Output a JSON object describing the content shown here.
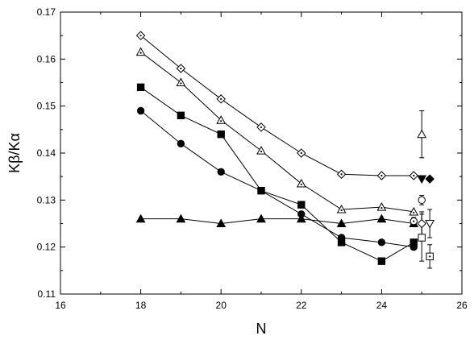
{
  "chart_data": {
    "type": "scatter",
    "title": "",
    "xlabel": "N",
    "ylabel": "Kβ/Kα",
    "xlim": [
      16,
      26
    ],
    "ylim": [
      0.11,
      0.17
    ],
    "xticks": [
      "16",
      "18",
      "20",
      "22",
      "24",
      "26"
    ],
    "yticks": [
      "0.11",
      "0.12",
      "0.13",
      "0.14",
      "0.15",
      "0.16",
      "0.17"
    ],
    "grid": false,
    "legend": "none",
    "series": [
      {
        "marker": "diamond-dotted",
        "connected": true,
        "x": [
          18,
          19,
          20,
          21,
          22,
          23,
          24,
          24.8
        ],
        "y": [
          0.165,
          0.158,
          0.1515,
          0.1455,
          0.14,
          0.1355,
          0.1352,
          0.1352
        ]
      },
      {
        "marker": "triangle-dotted",
        "connected": true,
        "x": [
          18,
          19,
          20,
          21,
          22,
          23,
          24,
          24.8
        ],
        "y": [
          0.1615,
          0.155,
          0.147,
          0.1405,
          0.1335,
          0.128,
          0.1285,
          0.1275
        ]
      },
      {
        "marker": "square-filled",
        "connected": true,
        "x": [
          18,
          19,
          20,
          21,
          22,
          23,
          24,
          24.8
        ],
        "y": [
          0.154,
          0.148,
          0.144,
          0.132,
          0.129,
          0.121,
          0.117,
          0.121
        ]
      },
      {
        "marker": "circle-filled",
        "connected": true,
        "x": [
          18,
          19,
          20,
          21,
          22,
          23,
          24,
          24.8
        ],
        "y": [
          0.149,
          0.142,
          0.136,
          0.132,
          0.127,
          0.122,
          0.121,
          0.12
        ]
      },
      {
        "marker": "triangle-filled",
        "connected": true,
        "x": [
          18,
          19,
          20,
          21,
          22,
          23,
          24,
          24.8
        ],
        "y": [
          0.126,
          0.126,
          0.125,
          0.126,
          0.126,
          0.125,
          0.126,
          0.125
        ]
      }
    ],
    "reference_points": [
      {
        "marker": "triangle-open",
        "x": 25.0,
        "y": 0.144,
        "err": 0.005
      },
      {
        "marker": "triangle-down-filled",
        "x": 25.0,
        "y": 0.1345,
        "err": 0
      },
      {
        "marker": "diamond-filled",
        "x": 25.2,
        "y": 0.1345,
        "err": 0
      },
      {
        "marker": "circle-open",
        "x": 25.0,
        "y": 0.13,
        "err": 0.001
      },
      {
        "marker": "circle-dotted",
        "x": 24.8,
        "y": 0.1255,
        "err": 0.0008
      },
      {
        "marker": "diamond-open",
        "x": 25.0,
        "y": 0.125,
        "err": 0.0025
      },
      {
        "marker": "triangle-down-open",
        "x": 25.2,
        "y": 0.125,
        "err": 0.003
      },
      {
        "marker": "square-open",
        "x": 25.0,
        "y": 0.122,
        "err": 0.005
      },
      {
        "marker": "square-dotted",
        "x": 25.2,
        "y": 0.118,
        "err": 0.0025
      }
    ]
  }
}
